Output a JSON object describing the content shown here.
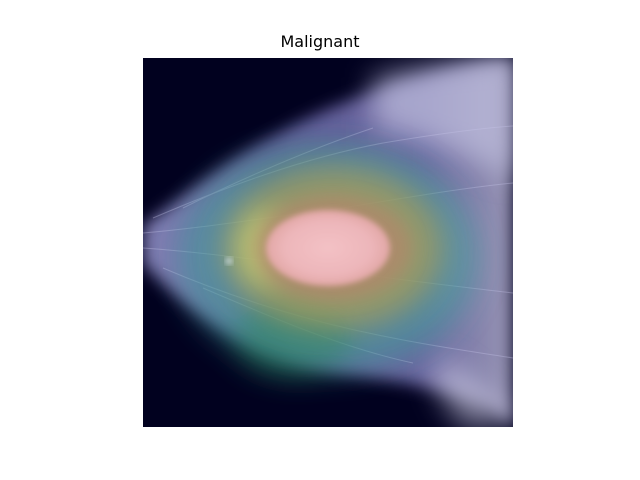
{
  "figure": {
    "title": "Malignant"
  },
  "image": {
    "content": "mammogram-with-saliency-heatmap-overlay",
    "colors": {
      "background": "#01011f",
      "tissue": "#6e68a8",
      "heat_outer": "#3f9f9a",
      "heat_mid": "#9e9a5a",
      "heat_core": "#f2bcc2"
    }
  }
}
